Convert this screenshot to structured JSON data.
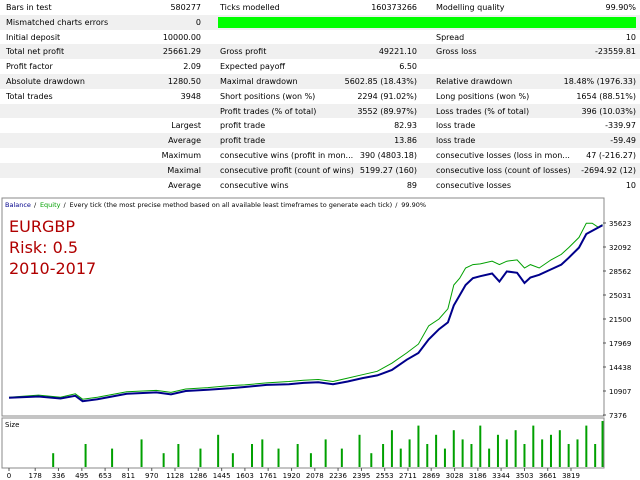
{
  "table": {
    "summary_rows": [
      [
        "Bars in test",
        "580277",
        "Ticks modelled",
        "160373266",
        "Modelling quality",
        "99.90%"
      ],
      [
        "Mismatched charts errors",
        "0"
      ],
      [
        "Initial deposit",
        "10000.00",
        null,
        null,
        "Spread",
        "10"
      ],
      [
        "Total net profit",
        "25661.29",
        "Gross profit",
        "49221.10",
        "Gross loss",
        "-23559.81"
      ],
      [
        "Profit factor",
        "2.09",
        "Expected payoff",
        "6.50"
      ],
      [
        "Absolute drawdown",
        "1280.50",
        "Maximal drawdown",
        "5602.85 (18.43%)",
        "Relative drawdown",
        "18.48% (1976.33)"
      ],
      [
        "Total trades",
        "3948",
        "Short positions (won %)",
        "2294 (91.02%)",
        "Long positions (won %)",
        "1654 (88.51%)"
      ],
      [
        null,
        null,
        "Profit trades (% of total)",
        "3552 (89.97%)",
        "Loss trades (% of total)",
        "396 (10.03%)"
      ]
    ],
    "detail_rows": [
      [
        "Largest",
        "profit trade",
        "82.93",
        "loss trade",
        "-339.97"
      ],
      [
        "Average",
        "profit trade",
        "13.86",
        "loss trade",
        "-59.49"
      ],
      [
        "Maximum",
        "consecutive wins (profit in mon...",
        "390 (4803.18)",
        "consecutive losses (loss in mon...",
        "47 (-216.27)"
      ],
      [
        "Maximal",
        "consecutive profit (count of wins)",
        "5199.27 (160)",
        "consecutive loss (count of losses)",
        "-2694.92 (12)"
      ],
      [
        "Average",
        "consecutive wins",
        "89",
        "consecutive losses",
        "10"
      ]
    ]
  },
  "chart_data": {
    "type": "line",
    "legend": [
      "Balance",
      "Equity",
      "Every tick (the most precise method based on all available least timeframes to generate each tick)",
      "99.90%"
    ],
    "annotations": [
      "EURGBP",
      "Risk: 0.5",
      "2010-2017"
    ],
    "xlim": [
      0,
      4040
    ],
    "ylim": [
      7376,
      35623
    ],
    "yticks": [
      7376,
      10907,
      14438,
      17969,
      21500,
      25031,
      28562,
      32092,
      35623
    ],
    "xticks": [
      0,
      178,
      336,
      495,
      653,
      811,
      970,
      1128,
      1286,
      1445,
      1603,
      1761,
      1920,
      2078,
      2236,
      2395,
      2553,
      2711,
      2869,
      3028,
      3186,
      3344,
      3503,
      3661,
      3819
    ],
    "series": [
      {
        "name": "Balance",
        "color": "#00008b",
        "x": [
          0,
          200,
          350,
          450,
          500,
          600,
          800,
          1000,
          1100,
          1200,
          1350,
          1500,
          1600,
          1750,
          1900,
          2000,
          2100,
          2200,
          2300,
          2400,
          2500,
          2600,
          2700,
          2780,
          2850,
          2920,
          2980,
          3020,
          3060,
          3100,
          3150,
          3200,
          3280,
          3330,
          3380,
          3450,
          3500,
          3540,
          3600,
          3680,
          3750,
          3800,
          3870,
          3920,
          4030
        ],
        "values": [
          9900,
          10100,
          9800,
          10200,
          9400,
          9700,
          10500,
          10700,
          10400,
          10900,
          11100,
          11300,
          11500,
          11800,
          11900,
          12100,
          12200,
          11900,
          12300,
          12800,
          13200,
          14000,
          15500,
          16500,
          18500,
          20000,
          21000,
          23500,
          25000,
          26500,
          27500,
          27800,
          28200,
          27000,
          28500,
          28300,
          26800,
          27600,
          28000,
          28800,
          29500,
          30500,
          32000,
          34000,
          35300
        ]
      },
      {
        "name": "Equity",
        "color": "#00a000",
        "x": [
          0,
          200,
          350,
          450,
          500,
          600,
          800,
          1000,
          1100,
          1200,
          1350,
          1500,
          1600,
          1750,
          1900,
          2000,
          2100,
          2200,
          2300,
          2400,
          2500,
          2600,
          2700,
          2780,
          2850,
          2920,
          2980,
          3020,
          3060,
          3100,
          3150,
          3200,
          3280,
          3330,
          3380,
          3450,
          3500,
          3540,
          3600,
          3680,
          3750,
          3800,
          3870,
          3920,
          3960,
          4000,
          4030
        ],
        "values": [
          10000,
          10300,
          10000,
          10500,
          9700,
          10000,
          10800,
          11000,
          10700,
          11200,
          11400,
          11700,
          11800,
          12100,
          12300,
          12500,
          12600,
          12300,
          12800,
          13300,
          13800,
          15000,
          16500,
          17800,
          20500,
          21500,
          23000,
          26500,
          27500,
          29000,
          29500,
          29600,
          30000,
          29500,
          30000,
          30200,
          29000,
          29500,
          29000,
          30200,
          31000,
          32000,
          33500,
          35600,
          35600,
          35000,
          35400
        ]
      },
      {
        "name": "Size",
        "color": "#00a000",
        "x": [
          300,
          520,
          700,
          900,
          1050,
          1150,
          1300,
          1420,
          1520,
          1650,
          1720,
          1830,
          1960,
          2050,
          2150,
          2260,
          2380,
          2460,
          2540,
          2600,
          2660,
          2720,
          2780,
          2840,
          2900,
          2960,
          3020,
          3080,
          3140,
          3200,
          3260,
          3320,
          3380,
          3440,
          3500,
          3560,
          3620,
          3680,
          3740,
          3800,
          3860,
          3920,
          3980,
          4030
        ],
        "values": [
          0.3,
          0.5,
          0.4,
          0.6,
          0.3,
          0.5,
          0.4,
          0.7,
          0.3,
          0.5,
          0.6,
          0.4,
          0.5,
          0.3,
          0.6,
          0.4,
          0.7,
          0.3,
          0.5,
          0.8,
          0.4,
          0.6,
          0.9,
          0.5,
          0.7,
          0.4,
          0.8,
          0.6,
          0.5,
          0.9,
          0.4,
          0.7,
          0.6,
          0.8,
          0.5,
          0.9,
          0.6,
          0.7,
          0.8,
          0.5,
          0.6,
          0.9,
          0.5,
          1.0
        ]
      }
    ]
  }
}
